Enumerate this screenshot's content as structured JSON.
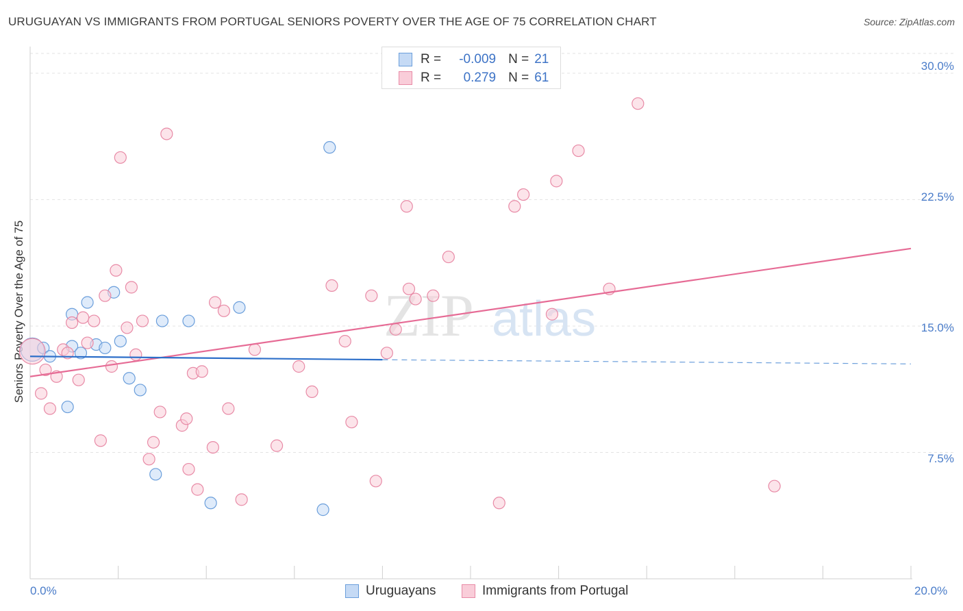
{
  "chart_data": {
    "type": "scatter",
    "title": "URUGUAYAN VS IMMIGRANTS FROM PORTUGAL SENIORS POVERTY OVER THE AGE OF 75 CORRELATION CHART",
    "source": "Source: ZipAtlas.com",
    "ylabel": "Seniors Poverty Over the Age of 75",
    "xlim": [
      0,
      20
    ],
    "ylim": [
      0,
      31.5
    ],
    "x_tick_labels": [
      "0.0%",
      "20.0%"
    ],
    "y_ticks": [
      {
        "value": 30.0,
        "label": "30.0%"
      },
      {
        "value": 22.5,
        "label": "22.5%"
      },
      {
        "value": 15.0,
        "label": "15.0%"
      },
      {
        "value": 7.5,
        "label": "7.5%"
      }
    ],
    "watermark": "ZIPatlas",
    "legend": [
      {
        "r_label": "R =",
        "r_value": "-0.009",
        "n_label": "N =",
        "n_value": "21"
      },
      {
        "r_label": "R =",
        "r_value": "0.279",
        "n_label": "N =",
        "n_value": "61"
      }
    ],
    "series": [
      {
        "name": "Uruguayans",
        "color": "#6a9edb",
        "fill": "#c5daf5",
        "trend": {
          "x0": 0,
          "y0": 13.2,
          "x1": 8.0,
          "y1": 13.0,
          "dash_to_x": 20,
          "dash_to_y": 12.75
        },
        "points": [
          [
            0.05,
            13.6,
            2.0
          ],
          [
            0.3,
            13.7,
            1
          ],
          [
            0.45,
            13.2,
            1
          ],
          [
            0.95,
            13.8,
            1
          ],
          [
            1.15,
            13.4,
            1
          ],
          [
            0.95,
            15.7,
            1
          ],
          [
            1.3,
            16.4,
            1
          ],
          [
            1.5,
            13.9,
            1
          ],
          [
            1.7,
            13.7,
            1
          ],
          [
            1.9,
            17.0,
            1
          ],
          [
            2.05,
            14.1,
            1
          ],
          [
            2.25,
            11.9,
            1
          ],
          [
            2.5,
            11.2,
            1
          ],
          [
            2.85,
            6.2,
            1
          ],
          [
            3.0,
            15.3,
            1
          ],
          [
            3.6,
            15.3,
            1
          ],
          [
            4.1,
            4.5,
            1
          ],
          [
            4.75,
            16.1,
            1
          ],
          [
            6.65,
            4.1,
            1
          ],
          [
            6.8,
            25.6,
            1
          ],
          [
            0.85,
            10.2,
            1
          ]
        ]
      },
      {
        "name": "Immigrants from Portugal",
        "color": "#e88aa6",
        "fill": "#f9cdd9",
        "trend": {
          "x0": 0,
          "y0": 12.0,
          "x1": 20,
          "y1": 19.6
        },
        "points": [
          [
            0.05,
            13.5,
            2.2
          ],
          [
            0.25,
            11.0,
            1
          ],
          [
            0.35,
            12.4,
            1
          ],
          [
            0.45,
            10.1,
            1
          ],
          [
            0.6,
            12.0,
            1
          ],
          [
            0.75,
            13.6,
            1
          ],
          [
            0.85,
            13.4,
            1
          ],
          [
            0.95,
            15.2,
            1
          ],
          [
            1.1,
            11.8,
            1
          ],
          [
            1.2,
            15.5,
            1
          ],
          [
            1.3,
            14.0,
            1
          ],
          [
            1.45,
            15.3,
            1
          ],
          [
            1.6,
            8.2,
            1
          ],
          [
            1.7,
            16.8,
            1
          ],
          [
            1.85,
            12.6,
            1
          ],
          [
            1.95,
            18.3,
            1
          ],
          [
            2.05,
            25.0,
            1
          ],
          [
            2.2,
            14.9,
            1
          ],
          [
            2.3,
            17.3,
            1
          ],
          [
            2.4,
            13.3,
            1
          ],
          [
            2.55,
            15.3,
            1
          ],
          [
            2.7,
            7.1,
            1
          ],
          [
            2.8,
            8.1,
            1
          ],
          [
            2.95,
            9.9,
            1
          ],
          [
            3.1,
            26.4,
            1
          ],
          [
            3.45,
            9.1,
            1
          ],
          [
            3.55,
            9.5,
            1
          ],
          [
            3.6,
            6.5,
            1
          ],
          [
            3.7,
            12.2,
            1
          ],
          [
            3.8,
            5.3,
            1
          ],
          [
            3.9,
            12.3,
            1
          ],
          [
            4.15,
            7.8,
            1
          ],
          [
            4.2,
            16.4,
            1
          ],
          [
            4.4,
            15.9,
            1
          ],
          [
            4.5,
            10.1,
            1
          ],
          [
            4.8,
            4.7,
            1
          ],
          [
            5.1,
            13.6,
            1
          ],
          [
            5.6,
            7.9,
            1
          ],
          [
            6.1,
            12.6,
            1
          ],
          [
            6.4,
            11.1,
            1
          ],
          [
            6.85,
            17.4,
            1
          ],
          [
            7.15,
            14.1,
            1
          ],
          [
            7.3,
            9.3,
            1
          ],
          [
            7.75,
            16.8,
            1
          ],
          [
            7.85,
            5.8,
            1
          ],
          [
            8.1,
            13.4,
            1
          ],
          [
            8.3,
            14.8,
            1
          ],
          [
            8.55,
            22.1,
            1
          ],
          [
            8.6,
            17.2,
            1
          ],
          [
            8.75,
            16.6,
            1
          ],
          [
            9.15,
            16.8,
            1
          ],
          [
            9.5,
            19.1,
            1
          ],
          [
            10.65,
            4.5,
            1
          ],
          [
            11.0,
            22.1,
            1
          ],
          [
            11.2,
            22.8,
            1
          ],
          [
            11.85,
            15.7,
            1
          ],
          [
            11.95,
            23.6,
            1
          ],
          [
            12.45,
            25.4,
            1
          ],
          [
            13.15,
            17.2,
            1
          ],
          [
            13.8,
            28.2,
            1
          ],
          [
            16.9,
            5.5,
            1
          ]
        ]
      }
    ]
  },
  "bottom_legend": [
    "Uruguayans",
    "Immigrants from Portugal"
  ]
}
